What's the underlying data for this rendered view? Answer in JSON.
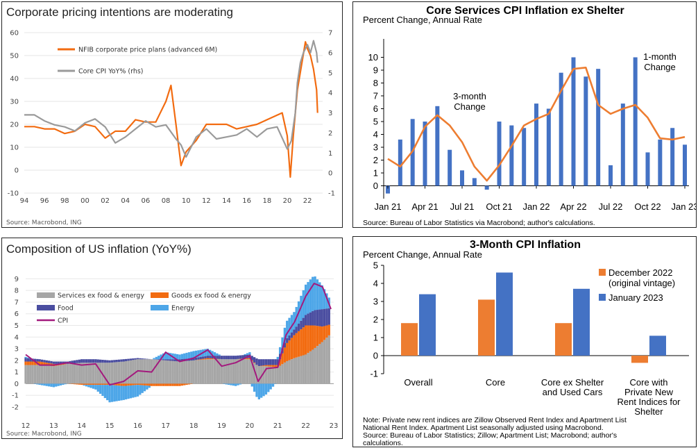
{
  "chart_data": [
    {
      "type": "line",
      "title": "Corporate pricing intentions are moderating",
      "source": "Source: Macrobond, ING",
      "x_ticks": [
        "94",
        "96",
        "98",
        "00",
        "02",
        "04",
        "06",
        "08",
        "10",
        "12",
        "14",
        "16",
        "18",
        "20",
        "22"
      ],
      "y_left_ticks": [
        "60",
        "50",
        "40",
        "30",
        "20",
        "10",
        "0",
        "-10"
      ],
      "y_right_ticks": [
        "7",
        "6",
        "5",
        "4",
        "3",
        "2",
        "1",
        "0",
        "-1"
      ],
      "ylim_left": [
        -10,
        60
      ],
      "ylim_right": [
        -1,
        7
      ],
      "xlim": [
        1994,
        2023.5
      ],
      "series": [
        {
          "name": "NFIB corporate price plans (advanced 6M)",
          "color": "#F26B10",
          "axis": "left",
          "x": [
            1994,
            1995,
            1996,
            1997,
            1998,
            1999,
            2000,
            2001,
            2002,
            2003,
            2004,
            2005,
            2006,
            2007,
            2008,
            2008.5,
            2009,
            2009.5,
            2010,
            2011,
            2012,
            2013,
            2014,
            2015,
            2016,
            2017,
            2018,
            2019,
            2019.5,
            2020,
            2020.3,
            2020.6,
            2021,
            2021.5,
            2021.8,
            2022,
            2022.3,
            2022.6,
            2022.9,
            2023
          ],
          "values": [
            19,
            19,
            18,
            18,
            16,
            17,
            20,
            19,
            14,
            17,
            17,
            22,
            21,
            21,
            30,
            37,
            20,
            2,
            8,
            13,
            20,
            20,
            20,
            18,
            19,
            20,
            22,
            24,
            25,
            15,
            -3,
            15,
            35,
            48,
            56,
            53,
            50,
            44,
            35,
            25
          ]
        },
        {
          "name": "Core CPI YoY% (rhs)",
          "color": "#9A9A9A",
          "axis": "right",
          "x": [
            1994,
            1995,
            1996,
            1997,
            1998,
            1999,
            2000,
            2001,
            2002,
            2003,
            2004,
            2005,
            2006,
            2007,
            2008,
            2009,
            2009.5,
            2010,
            2011,
            2012,
            2013,
            2014,
            2015,
            2016,
            2017,
            2018,
            2019,
            2020,
            2020.4,
            2020.8,
            2021,
            2021.3,
            2021.6,
            2022,
            2022.3,
            2022.6,
            2022.9,
            2023
          ],
          "values": [
            2.9,
            2.9,
            2.6,
            2.4,
            2.3,
            2.1,
            2.5,
            2.7,
            2.3,
            1.5,
            1.8,
            2.2,
            2.6,
            2.3,
            2.4,
            1.7,
            1.4,
            0.8,
            1.8,
            2.2,
            1.7,
            1.8,
            1.9,
            2.2,
            1.8,
            2.2,
            2.3,
            1.2,
            1.6,
            3.0,
            4.5,
            5.5,
            6.0,
            6.4,
            6.0,
            6.6,
            6.0,
            5.5
          ]
        }
      ]
    },
    {
      "type": "bar",
      "title": "Core Services CPI Inflation ex Shelter",
      "subtitle": "Percent Change, Annual Rate",
      "source": "Source: Bureau of Labor Statistics via Macrobond; author's calculations.",
      "x_tick_labels": [
        "Jan 21",
        "Apr 21",
        "Jul 21",
        "Oct 21",
        "Jan 22",
        "Apr 22",
        "Jul 22",
        "Oct 22",
        "Jan 23"
      ],
      "ylim": [
        -1,
        11
      ],
      "y_ticks": [
        0,
        1,
        2,
        3,
        4,
        5,
        6,
        7,
        8,
        9,
        10
      ],
      "categories": [
        "Jan 21",
        "Feb 21",
        "Mar 21",
        "Apr 21",
        "May 21",
        "Jun 21",
        "Jul 21",
        "Aug 21",
        "Sep 21",
        "Oct 21",
        "Nov 21",
        "Dec 21",
        "Jan 22",
        "Feb 22",
        "Mar 22",
        "Apr 22",
        "May 22",
        "Jun 22",
        "Jul 22",
        "Aug 22",
        "Sep 22",
        "Oct 22",
        "Nov 22",
        "Dec 22",
        "Jan 23"
      ],
      "series": [
        {
          "name": "1-month Change",
          "type": "bar",
          "color": "#4472C4",
          "values": [
            -0.6,
            3.6,
            5.2,
            5.0,
            6.2,
            2.8,
            1.2,
            0.6,
            -0.3,
            5.0,
            4.7,
            4.5,
            6.4,
            6.0,
            8.8,
            10.0,
            8.5,
            9.1,
            1.6,
            6.4,
            10.0,
            2.6,
            3.6,
            4.5,
            3.2
          ]
        },
        {
          "name": "3-month Change",
          "type": "line",
          "color": "#ED7D31",
          "values": [
            2.1,
            1.5,
            2.7,
            4.6,
            5.5,
            4.7,
            3.4,
            1.5,
            0.4,
            1.6,
            3.1,
            4.7,
            5.2,
            5.6,
            7.4,
            9.1,
            9.2,
            6.3,
            5.6,
            6.0,
            6.3,
            5.3,
            3.7,
            3.6,
            3.8
          ]
        }
      ]
    },
    {
      "type": "bar",
      "title": "Composition of US inflation (YoY%)",
      "source": "Source: Macrobond, ING",
      "x_ticks": [
        "12",
        "13",
        "14",
        "15",
        "16",
        "17",
        "18",
        "19",
        "20",
        "21",
        "22",
        "23"
      ],
      "y_ticks": [
        "9",
        "8",
        "7",
        "6",
        "5",
        "4",
        "3",
        "2",
        "1",
        "0",
        "-1",
        "-2"
      ],
      "ylim": [
        -2.3,
        9.5
      ],
      "xlim": [
        2012,
        2023
      ],
      "legend": [
        "Services ex food & energy",
        "Goods ex food & energy",
        "Food",
        "Energy",
        "CPI"
      ],
      "colors": {
        "services": "#A6A6A6",
        "goods": "#F26B10",
        "food": "#4A4DA0",
        "energy": "#4DA6E8",
        "cpi": "#A3197D"
      },
      "x": [
        2012,
        2012.5,
        2013,
        2013.5,
        2014,
        2014.5,
        2015,
        2015.5,
        2016,
        2016.5,
        2017,
        2017.5,
        2018,
        2018.5,
        2019,
        2019.5,
        2020,
        2020.3,
        2020.6,
        2021,
        2021.3,
        2021.6,
        2022,
        2022.3,
        2022.6,
        2022.9
      ],
      "services": [
        1.6,
        1.6,
        1.5,
        1.7,
        1.8,
        1.8,
        1.8,
        1.9,
        2.1,
        2.1,
        2.0,
        1.9,
        2.0,
        2.1,
        2.1,
        2.1,
        2.1,
        1.5,
        1.5,
        1.4,
        1.9,
        2.2,
        2.5,
        3.0,
        3.6,
        4.3
      ],
      "goods": [
        0.3,
        0.3,
        0.2,
        0.0,
        -0.1,
        -0.1,
        -0.1,
        -0.2,
        -0.1,
        -0.2,
        -0.2,
        -0.2,
        0.0,
        0.1,
        0.0,
        0.0,
        0.1,
        0.0,
        0.1,
        0.2,
        1.5,
        2.0,
        2.5,
        2.0,
        1.3,
        0.8
      ],
      "food": [
        0.3,
        0.2,
        0.2,
        0.2,
        0.3,
        0.3,
        0.2,
        0.2,
        0.1,
        0.0,
        0.1,
        0.2,
        0.2,
        0.2,
        0.3,
        0.3,
        0.3,
        0.6,
        0.5,
        0.5,
        0.4,
        0.5,
        0.9,
        1.3,
        1.5,
        1.4
      ],
      "energy": [
        0.1,
        -0.1,
        -0.3,
        0.0,
        0.0,
        -0.4,
        -1.5,
        -1.2,
        -1.0,
        0.0,
        0.6,
        0.4,
        0.6,
        0.6,
        0.0,
        -0.2,
        0.2,
        -1.4,
        -0.9,
        0.2,
        1.5,
        1.5,
        2.6,
        3.0,
        2.0,
        0.6
      ],
      "cpi": [
        2.5,
        1.6,
        1.6,
        1.8,
        1.6,
        1.7,
        -0.1,
        0.2,
        1.1,
        1.0,
        2.7,
        1.9,
        2.2,
        2.9,
        1.5,
        1.8,
        2.4,
        0.2,
        1.3,
        1.4,
        4.2,
        5.3,
        7.5,
        8.6,
        8.3,
        6.4
      ]
    },
    {
      "type": "bar",
      "title": "3-Month CPI Inflation",
      "subtitle": "Percent Change, Annual Rate",
      "categories": [
        "Overall",
        "Core",
        "Core ex Shelter and Used Cars",
        "Core with Private New Rent Indices for Shelter"
      ],
      "category_lines": [
        [
          "Overall"
        ],
        [
          "Core"
        ],
        [
          "Core ex Shelter",
          "and Used Cars"
        ],
        [
          "Core with",
          "Private New",
          "Rent Indices for",
          "Shelter"
        ]
      ],
      "y_ticks": [
        5,
        4,
        3,
        2,
        1,
        0,
        -1
      ],
      "ylim": [
        -1,
        5
      ],
      "series": [
        {
          "name": "December 2022 (original vintage)",
          "name_lines": [
            "December 2022",
            "(original vintage)"
          ],
          "color": "#ED7D31",
          "values": [
            1.8,
            3.1,
            1.8,
            -0.4
          ]
        },
        {
          "name": "January 2023",
          "name_lines": [
            "January 2023"
          ],
          "color": "#4472C4",
          "values": [
            3.4,
            4.6,
            3.7,
            1.1
          ]
        }
      ],
      "note_lines": [
        "Note: Private new rent indices are Zillow Observed Rent Index and Apartment List",
        "National Rent Index. Apartment List seasonally adjusted using Macrobond.",
        "Source: Bureau of Labor Statistics; Zillow; Apartment List; Macrobond; author's",
        "calculations."
      ]
    }
  ]
}
